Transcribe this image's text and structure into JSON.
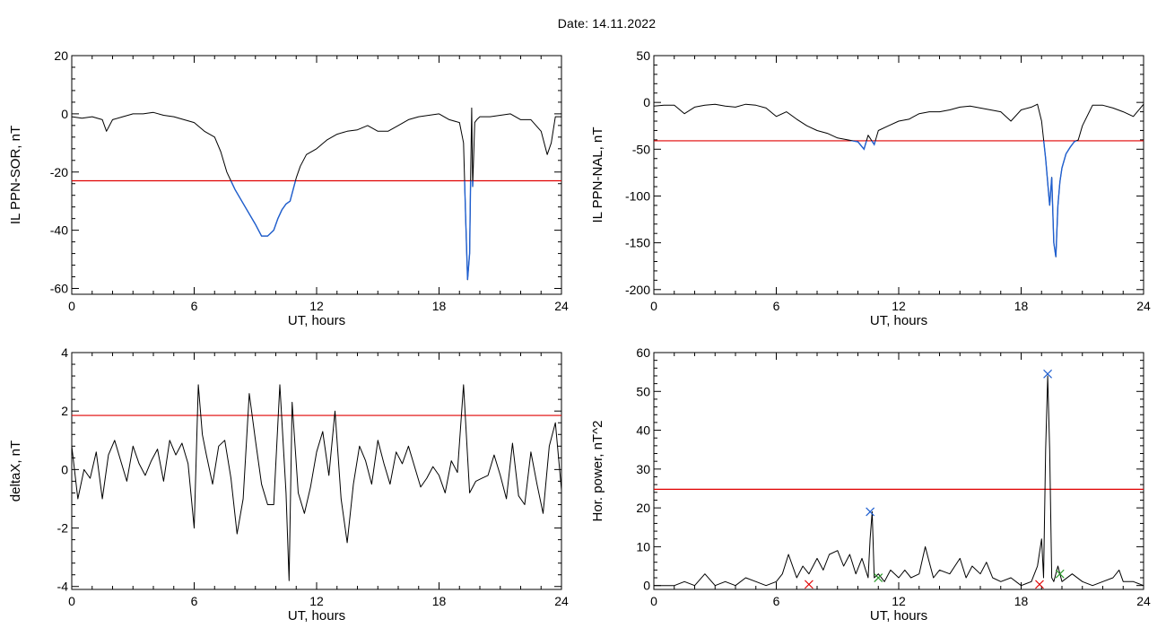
{
  "page": {
    "date_label": "Date:  14.11.2022"
  },
  "colors": {
    "axis": "#000000",
    "trace": "#000000",
    "highlight": "#1f5fd0",
    "threshold": "#e00000",
    "marker_blue": "#1f5fd0",
    "marker_red": "#e00000",
    "marker_green": "#2a9a2a"
  },
  "chart_data": [
    {
      "type": "line",
      "ylabel": "IL PPN-SOR, nT",
      "xlabel": "UT, hours",
      "xlim": [
        0,
        24
      ],
      "ylim": [
        -62,
        20
      ],
      "xticks": [
        0,
        6,
        12,
        18,
        24
      ],
      "xtick_labels": [
        "0",
        "6",
        "12",
        "18",
        "24"
      ],
      "yticks": [
        -60,
        -40,
        -20,
        0,
        20
      ],
      "ytick_labels": [
        "-60",
        "-40",
        "-20",
        "0",
        "20"
      ],
      "threshold": -23,
      "highlight_below_threshold": true,
      "series": [
        {
          "x": [
            0,
            0.5,
            1,
            1.5,
            1.7,
            2,
            2.5,
            3,
            3.5,
            4,
            4.5,
            5,
            5.5,
            6,
            6.5,
            7,
            7.3,
            7.6,
            8,
            8.5,
            9,
            9.3,
            9.6,
            9.9,
            10.1,
            10.3,
            10.5,
            10.7,
            11,
            11.2,
            11.5,
            12,
            12.5,
            13,
            13.5,
            14,
            14.5,
            15,
            15.5,
            16,
            16.5,
            17,
            17.5,
            18,
            18.5,
            19,
            19.2,
            19.3,
            19.4,
            19.5,
            19.55,
            19.6,
            19.65,
            19.75,
            19.85,
            20,
            20.5,
            21,
            21.5,
            22,
            22.5,
            23,
            23.3,
            23.5,
            23.7,
            24
          ],
          "y": [
            -1,
            -1.5,
            -1,
            -2,
            -6,
            -2,
            -1,
            0,
            0,
            0.5,
            -0.5,
            -1,
            -2,
            -3,
            -6,
            -8,
            -13,
            -20,
            -26,
            -32,
            -38,
            -42,
            -42,
            -40,
            -36,
            -33,
            -31,
            -30,
            -22,
            -18,
            -14,
            -12,
            -9,
            -7,
            -6,
            -5.5,
            -4,
            -6,
            -6,
            -4,
            -2,
            -1,
            -0.5,
            0,
            -2,
            -3,
            -10,
            -35,
            -57,
            -48,
            -20,
            2,
            -25,
            -3,
            -2,
            -1,
            -1,
            -0.5,
            0,
            -2,
            -2,
            -6,
            -14,
            -10,
            -1,
            -1
          ]
        }
      ]
    },
    {
      "type": "line",
      "ylabel": "IL PPN-NAL, nT",
      "xlabel": "UT, hours",
      "xlim": [
        0,
        24
      ],
      "ylim": [
        -205,
        50
      ],
      "xticks": [
        0,
        6,
        12,
        18,
        24
      ],
      "xtick_labels": [
        "0",
        "6",
        "12",
        "18",
        "24"
      ],
      "yticks": [
        -200,
        -150,
        -100,
        -50,
        0,
        50
      ],
      "ytick_labels": [
        "-200",
        "-150",
        "-100",
        "-50",
        "0",
        "50"
      ],
      "threshold": -41,
      "highlight_below_threshold": true,
      "series": [
        {
          "x": [
            0,
            0.5,
            1,
            1.5,
            2,
            2.5,
            3,
            3.5,
            4,
            4.5,
            5,
            5.5,
            6,
            6.5,
            7,
            7.5,
            8,
            8.5,
            9,
            9.5,
            10,
            10.3,
            10.5,
            10.8,
            11,
            11.5,
            12,
            12.5,
            13,
            13.5,
            14,
            14.5,
            15,
            15.5,
            16,
            16.5,
            17,
            17.5,
            18,
            18.5,
            18.8,
            19,
            19.2,
            19.4,
            19.5,
            19.6,
            19.7,
            19.8,
            19.9,
            20,
            20.2,
            20.4,
            20.6,
            20.8,
            21,
            21.5,
            22,
            22.5,
            23,
            23.5,
            24
          ],
          "y": [
            -4,
            -3,
            -3,
            -12,
            -5,
            -3,
            -2,
            -4,
            -5,
            -2,
            -3,
            -6,
            -15,
            -10,
            -18,
            -25,
            -30,
            -33,
            -38,
            -40,
            -42,
            -50,
            -35,
            -45,
            -30,
            -25,
            -20,
            -18,
            -12,
            -10,
            -10,
            -8,
            -5,
            -4,
            -6,
            -8,
            -10,
            -20,
            -8,
            -5,
            -2,
            -20,
            -60,
            -110,
            -80,
            -150,
            -165,
            -110,
            -85,
            -70,
            -55,
            -48,
            -42,
            -40,
            -25,
            -3,
            -3,
            -6,
            -10,
            -15,
            -2
          ]
        }
      ]
    },
    {
      "type": "line",
      "ylabel": "deltaX, nT",
      "xlabel": "UT, hours",
      "xlim": [
        0,
        24
      ],
      "ylim": [
        -4.1,
        4
      ],
      "xticks": [
        0,
        6,
        12,
        18,
        24
      ],
      "xtick_labels": [
        "0",
        "6",
        "12",
        "18",
        "24"
      ],
      "yticks": [
        -4,
        -2,
        0,
        2,
        4
      ],
      "ytick_labels": [
        "-4",
        "-2",
        "0",
        "2",
        "4"
      ],
      "threshold": 1.85,
      "series": [
        {
          "x": [
            0,
            0.3,
            0.6,
            0.9,
            1.2,
            1.5,
            1.8,
            2.1,
            2.4,
            2.7,
            3,
            3.3,
            3.6,
            3.9,
            4.2,
            4.5,
            4.8,
            5.1,
            5.4,
            5.7,
            6,
            6.2,
            6.4,
            6.6,
            6.9,
            7.2,
            7.5,
            7.8,
            8.1,
            8.4,
            8.7,
            9,
            9.3,
            9.6,
            9.9,
            10.2,
            10.5,
            10.65,
            10.8,
            11.1,
            11.4,
            11.7,
            12,
            12.3,
            12.6,
            12.9,
            13.2,
            13.5,
            13.8,
            14.1,
            14.4,
            14.7,
            15,
            15.3,
            15.6,
            15.9,
            16.2,
            16.5,
            16.8,
            17.1,
            17.4,
            17.7,
            18,
            18.3,
            18.6,
            18.9,
            19.2,
            19.5,
            19.8,
            20.1,
            20.4,
            20.7,
            21,
            21.3,
            21.6,
            21.9,
            22.2,
            22.5,
            22.8,
            23.1,
            23.4,
            23.7,
            24
          ],
          "y": [
            0.8,
            -1,
            0,
            -0.3,
            0.6,
            -1,
            0.5,
            1,
            0.3,
            -0.4,
            0.8,
            0.2,
            -0.2,
            0.3,
            0.7,
            -0.4,
            1,
            0.5,
            0.9,
            0.2,
            -2,
            2.9,
            1.2,
            0.5,
            -0.5,
            0.8,
            1,
            -0.3,
            -2.2,
            -1,
            2.6,
            1,
            -0.5,
            -1.2,
            -1.2,
            2.9,
            -0.8,
            -3.8,
            2.3,
            -0.8,
            -1.5,
            -0.6,
            0.6,
            1.3,
            -0.2,
            2,
            -1,
            -2.5,
            -0.5,
            0.8,
            0.3,
            -0.5,
            1,
            0.2,
            -0.5,
            0.6,
            0.2,
            0.8,
            0.1,
            -0.6,
            -0.3,
            0.1,
            -0.2,
            -0.8,
            0.3,
            -0.1,
            2.9,
            -0.8,
            -0.4,
            -0.3,
            -0.2,
            0.5,
            -0.2,
            -1,
            0.9,
            -0.9,
            -1.2,
            0.6,
            -0.5,
            -1.5,
            0.8,
            1.6,
            -0.7
          ]
        }
      ]
    },
    {
      "type": "line",
      "ylabel": "Hor. power, nT^2",
      "xlabel": "UT, hours",
      "xlim": [
        0,
        24
      ],
      "ylim": [
        -1,
        60
      ],
      "xticks": [
        0,
        6,
        12,
        18,
        24
      ],
      "xtick_labels": [
        "0",
        "6",
        "12",
        "18",
        "24"
      ],
      "yticks": [
        0,
        10,
        20,
        30,
        40,
        50,
        60
      ],
      "ytick_labels": [
        "0",
        "10",
        "20",
        "30",
        "40",
        "50",
        "60"
      ],
      "threshold": 24.8,
      "series": [
        {
          "x": [
            0,
            1,
            1.5,
            2,
            2.5,
            3,
            3.5,
            4,
            4.5,
            5,
            5.5,
            6,
            6.3,
            6.6,
            7,
            7.3,
            7.6,
            8,
            8.3,
            8.6,
            9,
            9.3,
            9.6,
            9.9,
            10.2,
            10.5,
            10.6,
            10.7,
            10.8,
            11,
            11.3,
            11.6,
            12,
            12.3,
            12.6,
            13,
            13.3,
            13.5,
            13.7,
            14,
            14.5,
            15,
            15.3,
            15.6,
            16,
            16.3,
            16.6,
            17,
            17.5,
            18,
            18.5,
            18.8,
            19,
            19.1,
            19.2,
            19.3,
            19.4,
            19.5,
            19.6,
            19.8,
            20,
            20.5,
            21,
            21.5,
            22,
            22.5,
            22.8,
            23,
            23.5,
            24
          ],
          "y": [
            0,
            0,
            1,
            0,
            3,
            0,
            1,
            0,
            2,
            1,
            0,
            1,
            3,
            8,
            2,
            5,
            3,
            7,
            4,
            8,
            9,
            5,
            8,
            3,
            7,
            2,
            12,
            19,
            2,
            3,
            1,
            4,
            2,
            4,
            2,
            3,
            10,
            6,
            2,
            4,
            3,
            7,
            2,
            5,
            3,
            6,
            2,
            1,
            2,
            0,
            1,
            5,
            12,
            2,
            35,
            54,
            35,
            2,
            1,
            5,
            1,
            3,
            1,
            0,
            1,
            2,
            4,
            1,
            1,
            0
          ]
        }
      ],
      "markers": [
        {
          "x": 10.6,
          "y": 19,
          "color": "blue"
        },
        {
          "x": 19.3,
          "y": 54.5,
          "color": "blue"
        },
        {
          "x": 7.6,
          "y": 0.3,
          "color": "red"
        },
        {
          "x": 18.9,
          "y": 0.3,
          "color": "red"
        },
        {
          "x": 11,
          "y": 2,
          "color": "green"
        },
        {
          "x": 19.9,
          "y": 3,
          "color": "green"
        }
      ]
    }
  ]
}
